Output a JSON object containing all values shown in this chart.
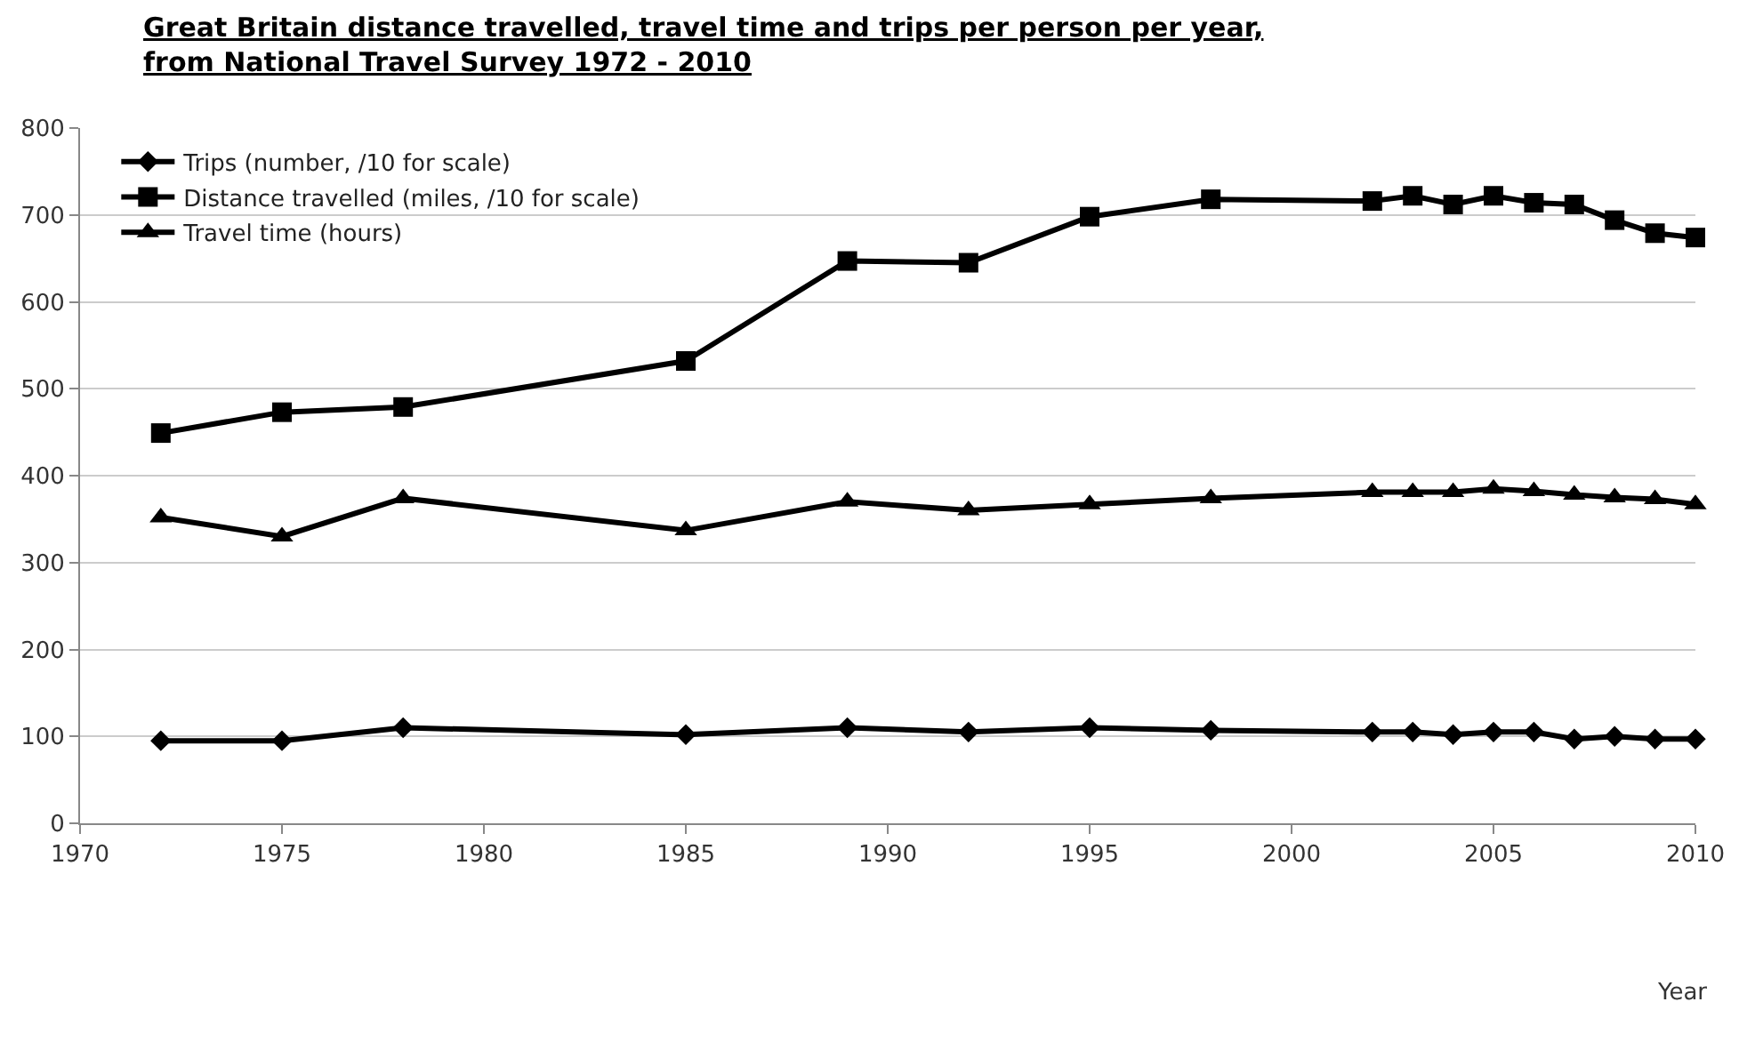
{
  "chart_data": {
    "type": "line",
    "title": "Great Britain distance travelled, travel time and trips per person per year,\nfrom National Travel Survey 1972 - 2010",
    "xlabel": "Year",
    "x": [
      1972,
      1975,
      1978,
      1985,
      1989,
      1992,
      1995,
      1998,
      2002,
      2003,
      2004,
      2005,
      2006,
      2007,
      2008,
      2009,
      2010
    ],
    "series": [
      {
        "name": "Trips (number, /10 for scale)",
        "color": "#000000",
        "marker": "diamond",
        "values": [
          95,
          95,
          110,
          102,
          110,
          105,
          110,
          107,
          105,
          105,
          102,
          105,
          105,
          97,
          100,
          97,
          97
        ]
      },
      {
        "name": "Distance travelled (miles, /10 for scale)",
        "color": "#000000",
        "marker": "square",
        "values": [
          449,
          473,
          479,
          532,
          647,
          645,
          698,
          718,
          716,
          722,
          712,
          722,
          714,
          712,
          694,
          679,
          674
        ]
      },
      {
        "name": "Travel time (hours)",
        "color": "#000000",
        "marker": "triangle",
        "values": [
          352,
          330,
          374,
          337,
          370,
          360,
          367,
          374,
          381,
          381,
          381,
          385,
          382,
          378,
          375,
          373,
          367
        ]
      }
    ],
    "xlim": [
      1970,
      2010
    ],
    "xticks": [
      1970,
      1975,
      1980,
      1985,
      1990,
      1995,
      2000,
      2005,
      2010
    ],
    "ylim": [
      0,
      800
    ],
    "yticks": [
      0,
      100,
      200,
      300,
      400,
      500,
      600,
      700,
      800
    ],
    "grid": "y",
    "legend": "top left",
    "line_style": "solid"
  }
}
